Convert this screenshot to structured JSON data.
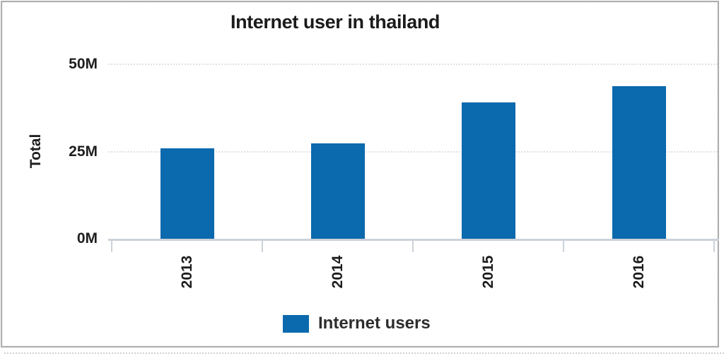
{
  "chart_data": {
    "type": "bar",
    "title": "Internet user in thailand",
    "categories": [
      "2013",
      "2014",
      "2015",
      "2016"
    ],
    "series": [
      {
        "name": "Internet users",
        "values": [
          26,
          27.4,
          39,
          43.7
        ]
      }
    ],
    "xlabel": "",
    "ylabel": "Total",
    "y_ticks": [
      {
        "label": "0M",
        "value": 0
      },
      {
        "label": "25M",
        "value": 25
      },
      {
        "label": "50M",
        "value": 50
      }
    ],
    "ylim": [
      0,
      50
    ],
    "grid": "horizontal-dotted",
    "legend_position": "bottom",
    "bar_color": "#0b69ad",
    "x_tick_label_rotation_deg": -90
  },
  "legend": {
    "items": [
      {
        "label": "Internet users",
        "swatch_color": "#0b69ad"
      }
    ]
  },
  "colors": {
    "bar": "#0b69ad",
    "gridline": "#dde1e7",
    "axis": "#ccd2da",
    "text": "#1b1b1b",
    "frame_border": "#aeaeae"
  }
}
